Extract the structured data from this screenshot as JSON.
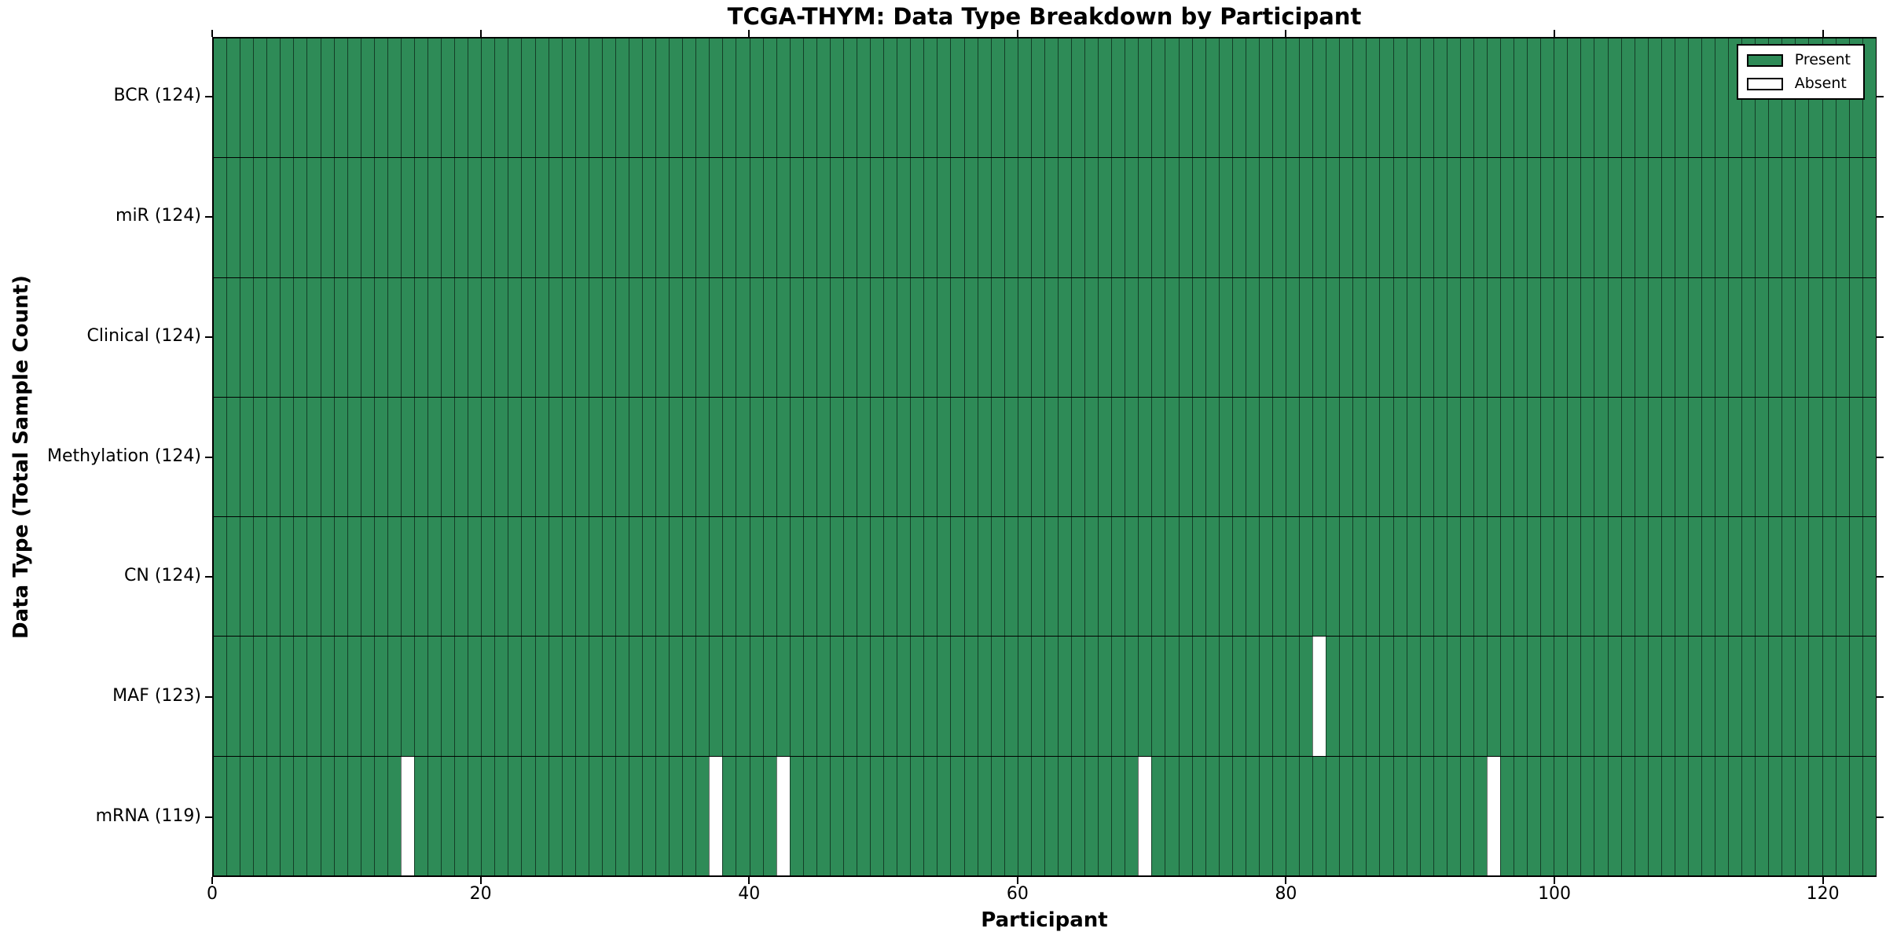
{
  "figure": {
    "background": "#ffffff"
  },
  "chart_data": {
    "type": "heatmap",
    "title": "TCGA-THYM: Data Type Breakdown by Participant",
    "xlabel": "Participant",
    "ylabel": "Data Type (Total Sample Count)",
    "xlim": [
      0,
      124
    ],
    "n_participants": 124,
    "x_ticks": [
      0,
      20,
      40,
      60,
      80,
      100,
      120
    ],
    "x_tick_labels": [
      "0",
      "20",
      "40",
      "60",
      "80",
      "100",
      "120"
    ],
    "grid": false,
    "legend_position": "upper right",
    "rows": [
      {
        "name": "BCR",
        "label": "BCR (124)",
        "present_count": 124,
        "absent_participants": []
      },
      {
        "name": "miR",
        "label": "miR (124)",
        "present_count": 124,
        "absent_participants": []
      },
      {
        "name": "Clinical",
        "label": "Clinical (124)",
        "present_count": 124,
        "absent_participants": []
      },
      {
        "name": "Methylation",
        "label": "Methylation (124)",
        "present_count": 124,
        "absent_participants": []
      },
      {
        "name": "CN",
        "label": "CN (124)",
        "present_count": 124,
        "absent_participants": []
      },
      {
        "name": "MAF",
        "label": "MAF (123)",
        "present_count": 123,
        "absent_participants": [
          82
        ]
      },
      {
        "name": "mRNA",
        "label": "mRNA (119)",
        "present_count": 119,
        "absent_participants": [
          14,
          37,
          42,
          69,
          95
        ]
      }
    ],
    "legend": [
      {
        "label": "Present",
        "color": "#2e8b57"
      },
      {
        "label": "Absent",
        "color": "#ffffff"
      }
    ],
    "colors": {
      "present": "#2e8b57",
      "absent": "#ffffff",
      "cell_edge": "#000000",
      "text": "#000000"
    }
  }
}
